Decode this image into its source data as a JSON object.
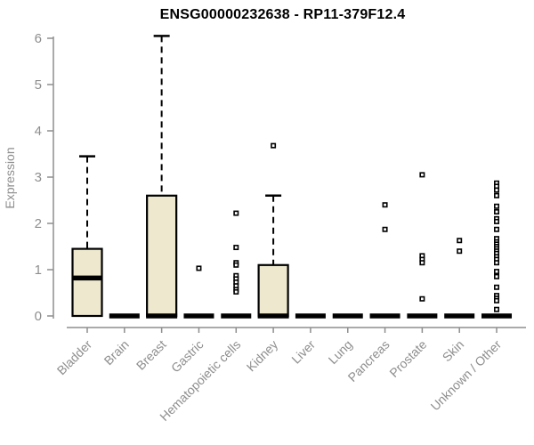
{
  "chart_data": {
    "type": "boxplot",
    "title": "ENSG00000232638 - RP11-379F12.4",
    "ylabel": "Expression",
    "xlabel": "",
    "ylim": [
      0,
      6
    ],
    "yticks": [
      0,
      1,
      2,
      3,
      4,
      5,
      6
    ],
    "grid": false,
    "legend": "none",
    "categories": [
      "Bladder",
      "Brain",
      "Breast",
      "Gastric",
      "Hematopoietic cells",
      "Kidney",
      "Liver",
      "Lung",
      "Pancreas",
      "Prostate",
      "Skin",
      "Unknown / Other"
    ],
    "boxes": [
      {
        "category": "Bladder",
        "q1": 0,
        "median": 0.82,
        "q3": 1.45,
        "whisker_low": 0,
        "whisker_high": 3.45,
        "outliers": []
      },
      {
        "category": "Brain",
        "q1": 0,
        "median": 0,
        "q3": 0,
        "whisker_low": 0,
        "whisker_high": 0,
        "outliers": []
      },
      {
        "category": "Breast",
        "q1": 0,
        "median": 0,
        "q3": 2.6,
        "whisker_low": 0,
        "whisker_high": 6.05,
        "outliers": []
      },
      {
        "category": "Gastric",
        "q1": 0,
        "median": 0,
        "q3": 0,
        "whisker_low": 0,
        "whisker_high": 0,
        "outliers": [
          1.03
        ]
      },
      {
        "category": "Hematopoietic cells",
        "q1": 0,
        "median": 0,
        "q3": 0,
        "whisker_low": 0,
        "whisker_high": 0,
        "outliers": [
          2.22,
          1.48,
          1.15,
          1.1,
          0.87,
          0.8,
          0.73,
          0.65,
          0.57,
          0.52
        ]
      },
      {
        "category": "Kidney",
        "q1": 0,
        "median": 0,
        "q3": 1.1,
        "whisker_low": 0,
        "whisker_high": 2.6,
        "outliers": [
          3.68
        ]
      },
      {
        "category": "Liver",
        "q1": 0,
        "median": 0,
        "q3": 0,
        "whisker_low": 0,
        "whisker_high": 0,
        "outliers": []
      },
      {
        "category": "Lung",
        "q1": 0,
        "median": 0,
        "q3": 0,
        "whisker_low": 0,
        "whisker_high": 0,
        "outliers": []
      },
      {
        "category": "Pancreas",
        "q1": 0,
        "median": 0,
        "q3": 0,
        "whisker_low": 0,
        "whisker_high": 0,
        "outliers": [
          2.4,
          1.87
        ]
      },
      {
        "category": "Prostate",
        "q1": 0,
        "median": 0,
        "q3": 0,
        "whisker_low": 0,
        "whisker_high": 0,
        "outliers": [
          3.05,
          1.3,
          1.22,
          1.15,
          0.37
        ]
      },
      {
        "category": "Skin",
        "q1": 0,
        "median": 0,
        "q3": 0,
        "whisker_low": 0,
        "whisker_high": 0,
        "outliers": [
          1.63,
          1.4
        ]
      },
      {
        "category": "Unknown / Other",
        "q1": 0,
        "median": 0,
        "q3": 0,
        "whisker_low": 0,
        "whisker_high": 0,
        "outliers": [
          2.87,
          2.8,
          2.72,
          2.6,
          2.37,
          2.25,
          2.1,
          2.04,
          1.87,
          1.67,
          1.6,
          1.55,
          1.5,
          1.45,
          1.4,
          1.35,
          1.28,
          1.22,
          1.15,
          0.96,
          0.85,
          0.62,
          0.44,
          0.38,
          0.33,
          0.14
        ]
      }
    ],
    "colors": {
      "box_fill": "#EDE8CE",
      "box_stroke": "#000000",
      "median": "#000000",
      "whisker": "#000000",
      "outlier_stroke": "#000000",
      "axis": "#8E8E8E",
      "label": "#8E8E8E",
      "title": "#000000",
      "background": "#FFFFFF"
    }
  }
}
